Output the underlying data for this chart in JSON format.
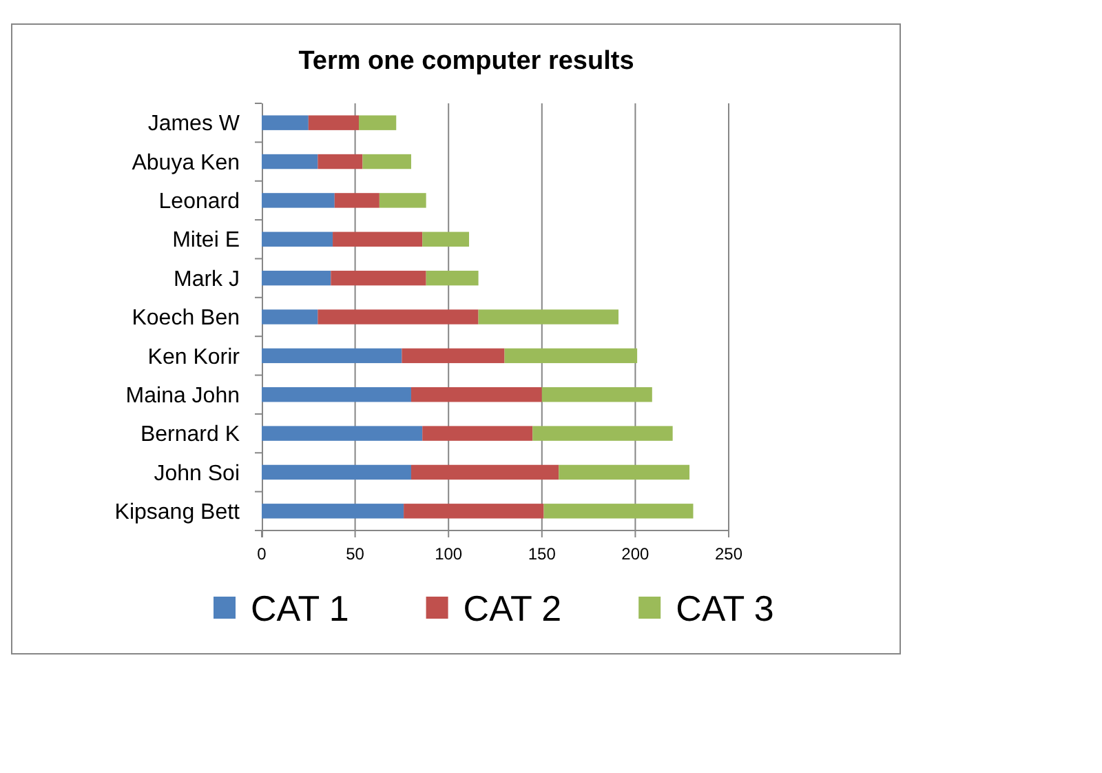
{
  "chart_data": {
    "type": "bar",
    "orientation": "horizontal",
    "stacked": true,
    "title": "Term one computer results",
    "categories": [
      "James W",
      "Abuya Ken",
      "Leonard",
      "Mitei E",
      "Mark J",
      "Koech Ben",
      "Ken Korir",
      "Maina John",
      "Bernard K",
      "John Soi",
      "Kipsang Bett"
    ],
    "series": [
      {
        "name": "CAT 1",
        "color": "#4f81bd",
        "values": [
          25,
          30,
          39,
          38,
          37,
          30,
          75,
          80,
          86,
          80,
          76
        ]
      },
      {
        "name": "CAT 2",
        "color": "#c0504d",
        "values": [
          27,
          24,
          24,
          48,
          51,
          86,
          55,
          70,
          59,
          79,
          75
        ]
      },
      {
        "name": "CAT 3",
        "color": "#9bbb59",
        "values": [
          20,
          26,
          25,
          25,
          28,
          75,
          71,
          59,
          75,
          70,
          80
        ]
      }
    ],
    "xlim": [
      0,
      250
    ],
    "xticks": [
      0,
      50,
      100,
      150,
      200,
      250
    ],
    "grid": "x",
    "legend": "bottom"
  }
}
